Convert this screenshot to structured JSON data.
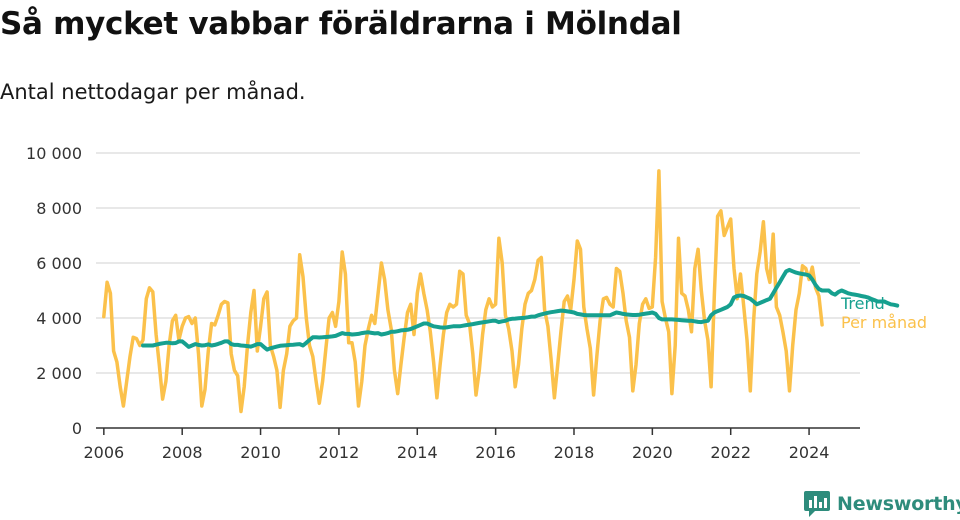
{
  "title": "Så mycket vabbar föräldrarna i Mölndal",
  "subtitle": "Antal nettodagar per månad.",
  "brand": {
    "name": "Newsworthy",
    "logo_icon": "bar-chart-icon",
    "color": "#2e8c7c"
  },
  "colors": {
    "monthly": "#fbc14b",
    "trend": "#16a08f",
    "grid": "#d9d9d9",
    "axis": "#333333",
    "text": "#333333"
  },
  "chart_data": {
    "type": "line",
    "x_axis": {
      "unit": "year",
      "range": [
        2005.8,
        2025.3
      ],
      "ticks": [
        "2006",
        "2008",
        "2010",
        "2012",
        "2014",
        "2016",
        "2018",
        "2020",
        "2022",
        "2024"
      ]
    },
    "y_axis": {
      "range": [
        0,
        10000
      ],
      "ticks": [
        "0",
        "2 000",
        "4 000",
        "6 000",
        "8 000",
        "10 000"
      ]
    },
    "grid": "horizontal",
    "legend": "inline-right",
    "series": [
      {
        "name": "Per månad",
        "color": "#fbc14b",
        "start": "2006-01",
        "frequency": "monthly",
        "values": [
          4050,
          5300,
          4900,
          2800,
          2400,
          1500,
          800,
          1700,
          2600,
          3300,
          3250,
          3000,
          3200,
          4700,
          5100,
          4950,
          3400,
          2300,
          1050,
          1700,
          3000,
          3900,
          4100,
          3200,
          3700,
          4000,
          4050,
          3800,
          4000,
          2700,
          800,
          1400,
          2800,
          3800,
          3750,
          4100,
          4500,
          4600,
          4550,
          2700,
          2100,
          1900,
          600,
          1500,
          3000,
          4200,
          5000,
          2800,
          3700,
          4700,
          4950,
          3000,
          2600,
          2100,
          750,
          2100,
          2700,
          3700,
          3900,
          4000,
          6300,
          5500,
          4000,
          3000,
          2600,
          1700,
          900,
          1700,
          2900,
          4000,
          4200,
          3700,
          4600,
          6400,
          5600,
          3100,
          3100,
          2400,
          800,
          1700,
          3000,
          3600,
          4100,
          3800,
          4900,
          6000,
          5400,
          4300,
          3600,
          2100,
          1250,
          2300,
          3300,
          4200,
          4500,
          3400,
          4900,
          5600,
          4900,
          4300,
          3500,
          2400,
          1100,
          2300,
          3400,
          4200,
          4500,
          4400,
          4500,
          5700,
          5600,
          4100,
          3800,
          2700,
          1200,
          2100,
          3400,
          4300,
          4700,
          4400,
          4500,
          6900,
          6000,
          4100,
          3600,
          2800,
          1500,
          2300,
          3600,
          4500,
          4900,
          5000,
          5400,
          6100,
          6200,
          4300,
          3700,
          2500,
          1100,
          2300,
          3500,
          4600,
          4800,
          4300,
          5400,
          6800,
          6500,
          4400,
          3600,
          2900,
          1200,
          2600,
          3900,
          4700,
          4750,
          4500,
          4400,
          5800,
          5700,
          4900,
          3900,
          3300,
          1350,
          2300,
          3800,
          4500,
          4700,
          4350,
          4400,
          6200,
          9350,
          4600,
          4000,
          3500,
          1250,
          3000,
          6900,
          4900,
          4800,
          4300,
          3500,
          5800,
          6500,
          5000,
          3900,
          3200,
          1500,
          4900,
          7700,
          7900,
          7000,
          7300,
          7600,
          5800,
          4700,
          5600,
          4400,
          3200,
          1350,
          3900,
          5600,
          6400,
          7500,
          5800,
          5300,
          7050,
          4400,
          4100,
          3500,
          2800,
          1350,
          3000,
          4300,
          4900,
          5900,
          5800,
          5400,
          5850,
          5100,
          4800,
          3750
        ]
      },
      {
        "name": "Trend",
        "color": "#16a08f",
        "start": "2007-01",
        "frequency": "monthly",
        "values": [
          3000,
          3000,
          3000,
          3000,
          3030,
          3060,
          3080,
          3100,
          3100,
          3080,
          3090,
          3150,
          3150,
          3050,
          2950,
          3000,
          3050,
          3020,
          3000,
          3010,
          3040,
          3000,
          3020,
          3060,
          3100,
          3150,
          3150,
          3050,
          3020,
          3020,
          3000,
          2990,
          2980,
          2960,
          3000,
          3050,
          3050,
          2950,
          2850,
          2900,
          2930,
          2960,
          2990,
          3000,
          3010,
          3020,
          3030,
          3040,
          3050,
          3000,
          3100,
          3200,
          3300,
          3300,
          3290,
          3300,
          3310,
          3320,
          3330,
          3350,
          3400,
          3450,
          3420,
          3420,
          3400,
          3410,
          3420,
          3450,
          3470,
          3480,
          3460,
          3440,
          3450,
          3400,
          3420,
          3450,
          3500,
          3500,
          3520,
          3550,
          3560,
          3570,
          3600,
          3650,
          3700,
          3750,
          3800,
          3800,
          3750,
          3700,
          3680,
          3660,
          3650,
          3660,
          3680,
          3700,
          3700,
          3700,
          3720,
          3740,
          3760,
          3780,
          3800,
          3820,
          3840,
          3860,
          3880,
          3900,
          3900,
          3850,
          3880,
          3900,
          3950,
          3970,
          3980,
          3990,
          4000,
          4010,
          4030,
          4050,
          4050,
          4100,
          4130,
          4160,
          4190,
          4210,
          4230,
          4250,
          4270,
          4260,
          4240,
          4220,
          4200,
          4150,
          4130,
          4110,
          4100,
          4100,
          4100,
          4100,
          4100,
          4100,
          4100,
          4100,
          4150,
          4200,
          4180,
          4150,
          4130,
          4120,
          4110,
          4110,
          4120,
          4140,
          4160,
          4180,
          4200,
          4150,
          4000,
          3950,
          3950,
          3950,
          3950,
          3940,
          3930,
          3920,
          3910,
          3900,
          3900,
          3880,
          3860,
          3850,
          3880,
          3900,
          4100,
          4200,
          4250,
          4300,
          4350,
          4400,
          4500,
          4750,
          4800,
          4820,
          4800,
          4750,
          4700,
          4600,
          4500,
          4550,
          4600,
          4650,
          4700,
          4900,
          5100,
          5300,
          5500,
          5700,
          5750,
          5700,
          5650,
          5620,
          5600,
          5580,
          5550,
          5400,
          5200,
          5050,
          5000,
          5000,
          5000,
          4900,
          4850,
          4950,
          5000,
          4950,
          4900,
          4870,
          4850,
          4830,
          4800,
          4780,
          4750,
          4700,
          4650,
          4600,
          4600,
          4600,
          4550,
          4500,
          4480,
          4450
        ]
      }
    ]
  }
}
